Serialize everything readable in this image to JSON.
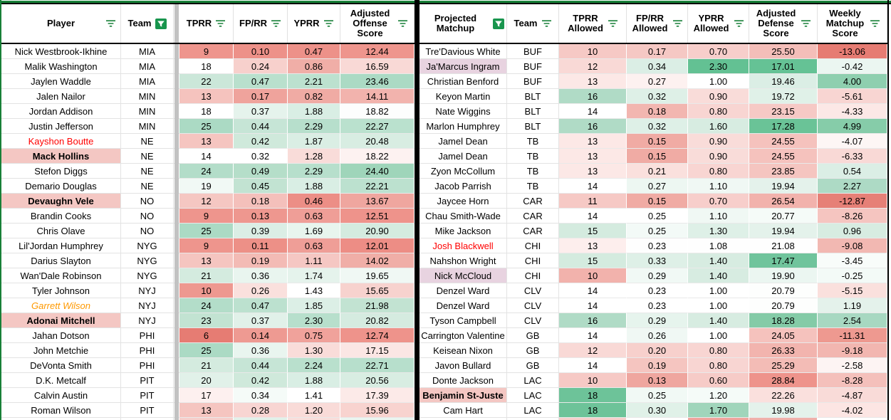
{
  "theme": {
    "accent_green": "#188038",
    "grid_line": "#e3e3e3",
    "gray_strip": "#c2c2c2",
    "highlight_pink": "#f4c7c3",
    "highlight_purple": "#e8d3e0",
    "red_player_text": "#ff0000",
    "orange_player_text": "#ff9900",
    "scale_min_red": "#e67c73",
    "scale_max_green": "#57bb8a"
  },
  "header": {
    "left": [
      {
        "label": "Player",
        "filter": "lines"
      },
      {
        "label": "Team",
        "filter": "filled"
      },
      {
        "label": "TPRR",
        "filter": "lines"
      },
      {
        "label": "FP/RR",
        "filter": "lines"
      },
      {
        "label": "YPRR",
        "filter": "lines"
      },
      {
        "label": "Adjusted Offense Score",
        "filter": "lines"
      }
    ],
    "right": [
      {
        "label": "Projected Matchup",
        "filter": "filled"
      },
      {
        "label": "Team",
        "filter": "lines"
      },
      {
        "label": "TPRR Allowed",
        "filter": "lines"
      },
      {
        "label": "FP/RR Allowed",
        "filter": "lines"
      },
      {
        "label": "YPRR Allowed",
        "filter": "lines"
      },
      {
        "label": "Adjusted Defense Score",
        "filter": "lines"
      },
      {
        "label": "Weekly Matchup Score",
        "filter": "lines"
      }
    ]
  },
  "left_rows": [
    {
      "player": "Nick Westbrook-Ikhine",
      "team": "MIA",
      "style": "",
      "values": [
        "9",
        "0.10",
        "0.47",
        "12.44"
      ],
      "colors": [
        "#ee958d",
        "#ed9189",
        "#ed9189",
        "#ee958d"
      ]
    },
    {
      "player": "Malik Washington",
      "team": "MIA",
      "style": "",
      "values": [
        "18",
        "0.24",
        "0.86",
        "16.59"
      ],
      "colors": [
        "#ffffff",
        "#f7d0cc",
        "#f0aea7",
        "#f9d9d6"
      ]
    },
    {
      "player": "Jaylen Waddle",
      "team": "MIA",
      "style": "",
      "values": [
        "22",
        "0.47",
        "2.21",
        "23.46"
      ],
      "colors": [
        "#cbe7d9",
        "#b9e0cd",
        "#bce1cf",
        "#abdac4"
      ]
    },
    {
      "player": "Jalen Nailor",
      "team": "MIN",
      "style": "",
      "values": [
        "13",
        "0.17",
        "0.82",
        "14.11"
      ],
      "colors": [
        "#f5c3be",
        "#efa39c",
        "#f0aba4",
        "#f2b3ad"
      ]
    },
    {
      "player": "Jordan Addison",
      "team": "MIN",
      "style": "",
      "values": [
        "18",
        "0.37",
        "1.88",
        "18.82"
      ],
      "colors": [
        "#ffffff",
        "#e5f3ec",
        "#d9eee4",
        "#fdfdfd"
      ]
    },
    {
      "player": "Justin Jefferson",
      "team": "MIN",
      "style": "",
      "values": [
        "25",
        "0.44",
        "2.29",
        "22.27"
      ],
      "colors": [
        "#abdac4",
        "#c6e5d6",
        "#b7dfcc",
        "#bae1ce"
      ]
    },
    {
      "player": "Kayshon Boutte",
      "team": "NE",
      "style": "red-text",
      "values": [
        "13",
        "0.42",
        "1.87",
        "20.48"
      ],
      "colors": [
        "#f5c5c0",
        "#cfe9db",
        "#daeee4",
        "#d8ede2"
      ]
    },
    {
      "player": "Mack Hollins",
      "team": "NE",
      "style": "bold-pink-bg",
      "values": [
        "14",
        "0.32",
        "1.28",
        "18.22"
      ],
      "colors": [
        "#ffffff",
        "#ffffff",
        "#f9dcd9",
        "#fdf2f1"
      ]
    },
    {
      "player": "Stefon Diggs",
      "team": "NE",
      "style": "",
      "values": [
        "24",
        "0.49",
        "2.29",
        "24.40"
      ],
      "colors": [
        "#b3ddc9",
        "#b5dec9",
        "#b7dfcc",
        "#9fd5ba"
      ]
    },
    {
      "player": "Demario Douglas",
      "team": "NE",
      "style": "",
      "values": [
        "19",
        "0.45",
        "1.88",
        "22.21"
      ],
      "colors": [
        "#f1f9f5",
        "#c2e3d2",
        "#d9eee4",
        "#bce1cf"
      ]
    },
    {
      "player": "Devaughn Vele",
      "team": "NO",
      "style": "bold-pink-bg",
      "values": [
        "12",
        "0.18",
        "0.46",
        "13.67"
      ],
      "colors": [
        "#f5c7c2",
        "#f4c0bb",
        "#ec8e86",
        "#efa69f"
      ]
    },
    {
      "player": "Brandin Cooks",
      "team": "NO",
      "style": "",
      "values": [
        "9",
        "0.13",
        "0.63",
        "12.51"
      ],
      "colors": [
        "#ee958d",
        "#ee978f",
        "#ef9e97",
        "#ee938b"
      ]
    },
    {
      "player": "Chris Olave",
      "team": "NO",
      "style": "",
      "values": [
        "25",
        "0.39",
        "1.69",
        "20.90"
      ],
      "colors": [
        "#abdac4",
        "#dbeee5",
        "#e8f5ee",
        "#d4ebdf"
      ]
    },
    {
      "player": "Lil'Jordan Humphrey",
      "team": "NYG",
      "style": "",
      "values": [
        "9",
        "0.11",
        "0.63",
        "12.01"
      ],
      "colors": [
        "#ee958d",
        "#ed9087",
        "#ef9e97",
        "#ed8d85"
      ]
    },
    {
      "player": "Darius Slayton",
      "team": "NYG",
      "style": "",
      "values": [
        "13",
        "0.19",
        "1.11",
        "14.02"
      ],
      "colors": [
        "#f5c5c0",
        "#f3bbb5",
        "#f5c7c3",
        "#f0aea7"
      ]
    },
    {
      "player": "Wan'Dale Robinson",
      "team": "NYG",
      "style": "",
      "values": [
        "21",
        "0.36",
        "1.74",
        "19.65"
      ],
      "colors": [
        "#d4ebdf",
        "#e9f5ef",
        "#e5f3ec",
        "#f0f8f4"
      ]
    },
    {
      "player": "Tyler Johnson",
      "team": "NYJ",
      "style": "",
      "values": [
        "10",
        "0.26",
        "1.43",
        "15.65"
      ],
      "colors": [
        "#ee9890",
        "#fae0dd",
        "#ffffff",
        "#f7d2ce"
      ]
    },
    {
      "player": "Garrett Wilson",
      "team": "NYJ",
      "style": "orange-italic",
      "values": [
        "24",
        "0.47",
        "1.85",
        "21.98"
      ],
      "colors": [
        "#b3ddc9",
        "#bce1cf",
        "#dcefe6",
        "#c2e3d2"
      ]
    },
    {
      "player": "Adonai Mitchell",
      "team": "NYJ",
      "style": "bold-pink-bg",
      "values": [
        "23",
        "0.37",
        "2.30",
        "20.82"
      ],
      "colors": [
        "#c2e3d2",
        "#e1f1e9",
        "#b7dfcc",
        "#d5ebe0"
      ]
    },
    {
      "player": "Jahan Dotson",
      "team": "PHI",
      "style": "",
      "values": [
        "6",
        "0.14",
        "0.75",
        "12.74"
      ],
      "colors": [
        "#e67c73",
        "#ee9a92",
        "#f0a29b",
        "#ee938b"
      ]
    },
    {
      "player": "John Metchie",
      "team": "PHI",
      "style": "",
      "values": [
        "25",
        "0.36",
        "1.30",
        "17.15"
      ],
      "colors": [
        "#abdac4",
        "#e9f5ef",
        "#f9dcd9",
        "#fbe6e4"
      ]
    },
    {
      "player": "DeVonta Smith",
      "team": "PHI",
      "style": "",
      "values": [
        "21",
        "0.44",
        "2.24",
        "22.71"
      ],
      "colors": [
        "#d4ebdf",
        "#c6e5d6",
        "#b9e0cd",
        "#b7dfcc"
      ]
    },
    {
      "player": "D.K. Metcalf",
      "team": "PIT",
      "style": "",
      "values": [
        "20",
        "0.42",
        "1.88",
        "20.56"
      ],
      "colors": [
        "#e1f1e9",
        "#cfe9db",
        "#d9eee4",
        "#d8ede2"
      ]
    },
    {
      "player": "Calvin Austin",
      "team": "PIT",
      "style": "",
      "values": [
        "17",
        "0.34",
        "1.41",
        "17.39"
      ],
      "colors": [
        "#fdf0ef",
        "#f5fbf8",
        "#ffffff",
        "#fceae8"
      ]
    },
    {
      "player": "Roman Wilson",
      "team": "PIT",
      "style": "",
      "values": [
        "13",
        "0.28",
        "1.20",
        "15.96"
      ],
      "colors": [
        "#f5c5c0",
        "#f8d5d2",
        "#f9dbd8",
        "#f8d3cf"
      ]
    }
  ],
  "right_rows": [
    {
      "player": "Tre'Davious White",
      "team": "BUF",
      "style": "",
      "values": [
        "10",
        "0.17",
        "0.70",
        "25.50",
        "-13.06"
      ],
      "colors": [
        "#f6c9c5",
        "#f5c8c4",
        "#f7cecb",
        "#f4beb9",
        "#e67c73"
      ]
    },
    {
      "player": "Ja'Marcus Ingram",
      "team": "BUF",
      "style": "purple-bg",
      "values": [
        "12",
        "0.34",
        "2.30",
        "17.01",
        "-0.42"
      ],
      "colors": [
        "#f9d9d6",
        "#dbeee5",
        "#63c193",
        "#65c295",
        "#ebf6f1"
      ]
    },
    {
      "player": "Christian Benford",
      "team": "BUF",
      "style": "",
      "values": [
        "13",
        "0.27",
        "1.00",
        "19.46",
        "4.00"
      ],
      "colors": [
        "#fce8e6",
        "#fdf1f0",
        "#ffffff",
        "#dbeee5",
        "#8ecfaf"
      ]
    },
    {
      "player": "Keyon Martin",
      "team": "BLT",
      "style": "",
      "values": [
        "16",
        "0.32",
        "0.90",
        "19.72",
        "-5.61"
      ],
      "colors": [
        "#b0dbc6",
        "#def0e7",
        "#f9dcd9",
        "#e0f1e8",
        "#f8d5d2"
      ]
    },
    {
      "player": "Nate Wiggins",
      "team": "BLT",
      "style": "",
      "values": [
        "14",
        "0.18",
        "0.80",
        "23.15",
        "-4.33"
      ],
      "colors": [
        "#ffffff",
        "#f2b6b0",
        "#f8d5d2",
        "#f6c9c5",
        "#fce8e6"
      ]
    },
    {
      "player": "Marlon Humphrey",
      "team": "BLT",
      "style": "",
      "values": [
        "16",
        "0.32",
        "1.60",
        "17.28",
        "4.99"
      ],
      "colors": [
        "#b0dbc6",
        "#def0e7",
        "#d7ece1",
        "#6ac397",
        "#86cca9"
      ]
    },
    {
      "player": "Jamel Dean",
      "team": "TB",
      "style": "",
      "values": [
        "13",
        "0.15",
        "0.90",
        "24.55",
        "-4.07"
      ],
      "colors": [
        "#fce8e6",
        "#f0aba4",
        "#f9dcd9",
        "#f5c2bd",
        "#fdf6f5"
      ]
    },
    {
      "player": "Jamel Dean",
      "team": "TB",
      "style": "",
      "values": [
        "13",
        "0.15",
        "0.90",
        "24.55",
        "-6.33"
      ],
      "colors": [
        "#fce8e6",
        "#f0aba4",
        "#f9dcd9",
        "#f5c2bd",
        "#f9d9d6"
      ]
    },
    {
      "player": "Zyon McCollum",
      "team": "TB",
      "style": "",
      "values": [
        "13",
        "0.21",
        "0.80",
        "23.85",
        "0.54"
      ],
      "colors": [
        "#fce8e6",
        "#fae0dd",
        "#f8d5d2",
        "#f5c5c0",
        "#dbeee5"
      ]
    },
    {
      "player": "Jacob Parrish",
      "team": "TB",
      "style": "",
      "values": [
        "14",
        "0.27",
        "1.10",
        "19.94",
        "2.27"
      ],
      "colors": [
        "#ffffff",
        "#edf7f2",
        "#f0f8f4",
        "#e4f2eb",
        "#addac5"
      ]
    },
    {
      "player": "Jaycee Horn",
      "team": "CAR",
      "style": "",
      "values": [
        "11",
        "0.15",
        "0.70",
        "26.54",
        "-12.87"
      ],
      "colors": [
        "#f6c9c5",
        "#f0aba4",
        "#f7cecb",
        "#f2b2ac",
        "#e68077"
      ]
    },
    {
      "player": "Chau Smith-Wade",
      "team": "CAR",
      "style": "",
      "values": [
        "14",
        "0.25",
        "1.10",
        "20.77",
        "-8.26"
      ],
      "colors": [
        "#ffffff",
        "#ffffff",
        "#f0f8f4",
        "#f5fbf8",
        "#f5c5c0"
      ]
    },
    {
      "player": "Mike Jackson",
      "team": "CAR",
      "style": "",
      "values": [
        "15",
        "0.25",
        "1.30",
        "19.94",
        "0.96"
      ],
      "colors": [
        "#d4ebdf",
        "#f3faf7",
        "#def0e7",
        "#e4f2eb",
        "#d7ece1"
      ]
    },
    {
      "player": "Josh Blackwell",
      "team": "CHI",
      "style": "red-text",
      "values": [
        "13",
        "0.23",
        "1.08",
        "21.08",
        "-9.08"
      ],
      "colors": [
        "#fdeeed",
        "#fefefe",
        "#fefefe",
        "#fefefe",
        "#f2b8b2"
      ]
    },
    {
      "player": "Nahshon Wright",
      "team": "CHI",
      "style": "",
      "values": [
        "15",
        "0.33",
        "1.40",
        "17.47",
        "-3.45"
      ],
      "colors": [
        "#d4ebdf",
        "#def0e7",
        "#d7ece1",
        "#70c49c",
        "#f8fcfa"
      ]
    },
    {
      "player": "Nick McCloud",
      "team": "CHI",
      "style": "purple-bg",
      "values": [
        "10",
        "0.29",
        "1.40",
        "19.90",
        "-0.25"
      ],
      "colors": [
        "#f2b2ac",
        "#f1f9f5",
        "#d7ece1",
        "#ebf6f1",
        "#f3faf7"
      ]
    },
    {
      "player": "Denzel Ward",
      "team": "CLV",
      "style": "",
      "values": [
        "14",
        "0.23",
        "1.00",
        "20.79",
        "-5.15"
      ],
      "colors": [
        "#ffffff",
        "#ffffff",
        "#ffffff",
        "#fdfefd",
        "#fae0dd"
      ]
    },
    {
      "player": "Denzel Ward",
      "team": "CLV",
      "style": "",
      "values": [
        "14",
        "0.23",
        "1.00",
        "20.79",
        "1.19"
      ],
      "colors": [
        "#ffffff",
        "#ffffff",
        "#ffffff",
        "#fdfefd",
        "#e4f2eb"
      ]
    },
    {
      "player": "Tyson Campbell",
      "team": "CLV",
      "style": "",
      "values": [
        "16",
        "0.29",
        "1.40",
        "18.28",
        "2.54"
      ],
      "colors": [
        "#b0dbc6",
        "#e6f4ed",
        "#d7ece1",
        "#84cba7",
        "#a7d8c1"
      ]
    },
    {
      "player": "Carrington Valentine",
      "team": "GB",
      "style": "",
      "values": [
        "14",
        "0.26",
        "1.00",
        "24.05",
        "-11.31"
      ],
      "colors": [
        "#ffffff",
        "#f0f8f4",
        "#ffffff",
        "#f5c2bd",
        "#ee9990"
      ]
    },
    {
      "player": "Keisean Nixon",
      "team": "GB",
      "style": "",
      "values": [
        "12",
        "0.20",
        "0.80",
        "26.33",
        "-9.18"
      ],
      "colors": [
        "#f9d9d6",
        "#f7d0cc",
        "#f8d5d2",
        "#f2b4ae",
        "#f2b6b0"
      ]
    },
    {
      "player": "Javon Bullard",
      "team": "GB",
      "style": "",
      "values": [
        "14",
        "0.19",
        "0.80",
        "25.29",
        "-2.58"
      ],
      "colors": [
        "#ffffff",
        "#f5c5c0",
        "#f8d5d2",
        "#f3bcb6",
        "#fdf4f3"
      ]
    },
    {
      "player": "Donte Jackson",
      "team": "LAC",
      "style": "",
      "values": [
        "10",
        "0.13",
        "0.60",
        "28.84",
        "-8.28"
      ],
      "colors": [
        "#f6c9c5",
        "#efa69f",
        "#f6cbc7",
        "#ee938b",
        "#f4c0bb"
      ]
    },
    {
      "player": "Benjamin St-Juste",
      "team": "LAC",
      "style": "bold-pink-bg",
      "values": [
        "18",
        "0.25",
        "1.20",
        "22.26",
        "-4.87"
      ],
      "colors": [
        "#6dc399",
        "#f1f9f5",
        "#f5fbf8",
        "#fae0dd",
        "#f9dbd8"
      ]
    },
    {
      "player": "Cam Hart",
      "team": "LAC",
      "style": "",
      "values": [
        "18",
        "0.30",
        "1.70",
        "19.98",
        "-4.02"
      ],
      "colors": [
        "#6dc399",
        "#e0f1e8",
        "#a0d5bb",
        "#e4f2eb",
        "#fce5e3"
      ]
    }
  ],
  "partial_bottom_row": {
    "left_colors": [
      "#f6cfcb",
      "#e1f1e9",
      "#f9dedb",
      "#eaf5f0"
    ],
    "right_colors": [
      "#f6cfcb",
      "#ffffff",
      "#f0a39c",
      "#f0b0aa",
      "#ffffff"
    ]
  }
}
